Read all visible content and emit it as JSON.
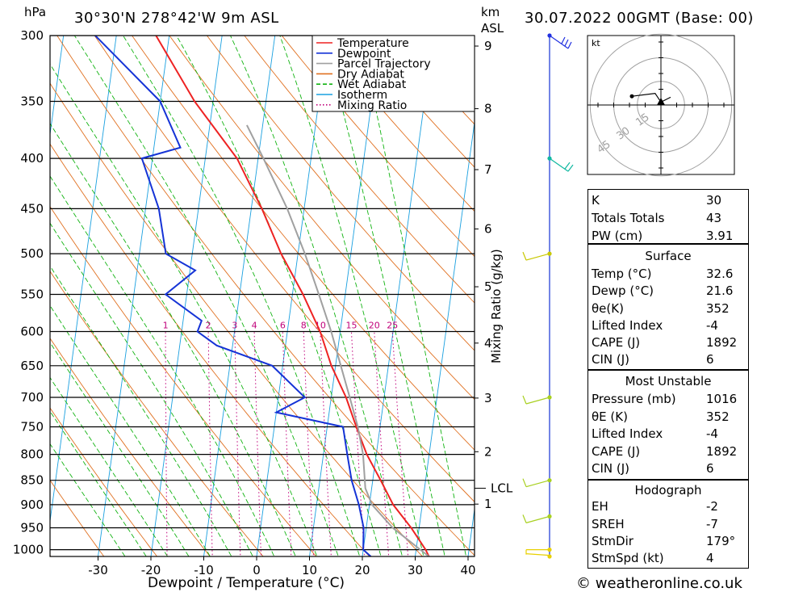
{
  "header": {
    "location": "30°30'N  278°42'W  9m  ASL",
    "datetime": "30.07.2022  00GMT  (Base: 00)",
    "hpa_label": "hPa",
    "km_label": "km",
    "asl_label": "ASL"
  },
  "footer": {
    "copyright": "© weatheronline.co.uk"
  },
  "chart_data": {
    "type": "line",
    "subtype": "skew-T log-P",
    "xlabel": "Dewpoint / Temperature (°C)",
    "ylabel": "hPa",
    "right_label": "Mixing Ratio (g/kg)",
    "pressure_levels": [
      300,
      350,
      400,
      450,
      500,
      550,
      600,
      650,
      700,
      750,
      800,
      850,
      900,
      950,
      1000
    ],
    "temp_ticks": [
      -30,
      -20,
      -10,
      0,
      10,
      20,
      30,
      40
    ],
    "km_ticks": [
      1,
      2,
      3,
      4,
      5,
      6,
      7,
      8,
      9
    ],
    "lcl_label": "LCL",
    "lcl_pressure": 866,
    "mixing_ratio_labels": [
      "1",
      "2",
      "3",
      "4",
      "6",
      "8",
      "10",
      "15",
      "20",
      "25"
    ],
    "legend": [
      "Temperature",
      "Dewpoint",
      "Parcel Trajectory",
      "Dry Adiabat",
      "Wet Adiabat",
      "Isotherm",
      "Mixing Ratio"
    ],
    "colors": {
      "temperature": "#ee2222",
      "dewpoint": "#1533d6",
      "parcel": "#a0a0a0",
      "dry_adiabat": "#e07020",
      "wet_adiabat": "#11b311",
      "isotherm": "#1aa0e0",
      "mixing_ratio": "#c0007a"
    },
    "series": [
      {
        "name": "Temperature",
        "points": [
          [
            1016,
            32.6
          ],
          [
            1000,
            31.8
          ],
          [
            950,
            28.5
          ],
          [
            900,
            24.5
          ],
          [
            850,
            21.5
          ],
          [
            800,
            18.2
          ],
          [
            750,
            15.5
          ],
          [
            700,
            12.8
          ],
          [
            650,
            9.2
          ],
          [
            600,
            6.2
          ],
          [
            550,
            2.0
          ],
          [
            500,
            -3.2
          ],
          [
            450,
            -8.0
          ],
          [
            400,
            -14.0
          ],
          [
            350,
            -23.5
          ],
          [
            300,
            -32.5
          ]
        ]
      },
      {
        "name": "Dewpoint",
        "points": [
          [
            1016,
            21.6
          ],
          [
            1000,
            20.0
          ],
          [
            950,
            19.5
          ],
          [
            900,
            18.0
          ],
          [
            850,
            16.0
          ],
          [
            800,
            14.5
          ],
          [
            750,
            13.0
          ],
          [
            725,
            0.0
          ],
          [
            700,
            5.0
          ],
          [
            650,
            -2.0
          ],
          [
            620,
            -13.0
          ],
          [
            600,
            -17.0
          ],
          [
            585,
            -16.5
          ],
          [
            550,
            -24.0
          ],
          [
            520,
            -19.0
          ],
          [
            500,
            -25.0
          ],
          [
            450,
            -27.5
          ],
          [
            400,
            -32.0
          ],
          [
            390,
            -25.0
          ],
          [
            350,
            -30.0
          ],
          [
            300,
            -44.0
          ]
        ]
      },
      {
        "name": "Parcel Trajectory",
        "points": [
          [
            1016,
            32.6
          ],
          [
            950,
            25.0
          ],
          [
            900,
            20.5
          ],
          [
            866,
            18.8
          ],
          [
            800,
            17.5
          ],
          [
            750,
            15.8
          ],
          [
            700,
            13.5
          ],
          [
            650,
            11.0
          ],
          [
            600,
            8.3
          ],
          [
            550,
            5.0
          ],
          [
            500,
            1.3
          ],
          [
            450,
            -3.2
          ],
          [
            400,
            -9.0
          ],
          [
            370,
            -13.0
          ]
        ]
      }
    ],
    "wind_barbs": [
      {
        "pressure": 300,
        "color": "#2030e0"
      },
      {
        "pressure": 400,
        "color": "#10b8a0"
      },
      {
        "pressure": 500,
        "color": "#c8c800"
      },
      {
        "pressure": 700,
        "color": "#a8d020"
      },
      {
        "pressure": 850,
        "color": "#a8d020"
      },
      {
        "pressure": 925,
        "color": "#a8d020"
      },
      {
        "pressure": 1000,
        "color": "#e8d000"
      }
    ],
    "hodograph": {
      "unit": "kt",
      "ring_labels": [
        "15",
        "30",
        "45"
      ],
      "points": [
        [
          -30,
          -9
        ],
        [
          -6,
          -12
        ],
        [
          0,
          -3
        ],
        [
          10,
          -8
        ]
      ]
    }
  },
  "stats": {
    "general": [
      {
        "key": "K",
        "value": "30"
      },
      {
        "key": "Totals Totals",
        "value": "43"
      },
      {
        "key": "PW (cm)",
        "value": "3.91"
      }
    ],
    "surface": {
      "title": "Surface",
      "rows": [
        {
          "key": "Temp (°C)",
          "value": "32.6"
        },
        {
          "key": "Dewp (°C)",
          "value": "21.6"
        },
        {
          "key": "θe(K)",
          "value": "352"
        },
        {
          "key": "Lifted Index",
          "value": "-4"
        },
        {
          "key": "CAPE (J)",
          "value": "1892"
        },
        {
          "key": "CIN (J)",
          "value": "6"
        }
      ]
    },
    "most_unstable": {
      "title": "Most Unstable",
      "rows": [
        {
          "key": "Pressure (mb)",
          "value": "1016"
        },
        {
          "key": "θE (K)",
          "value": "352"
        },
        {
          "key": "Lifted Index",
          "value": "-4"
        },
        {
          "key": "CAPE (J)",
          "value": "1892"
        },
        {
          "key": "CIN (J)",
          "value": "6"
        }
      ]
    },
    "hodograph": {
      "title": "Hodograph",
      "rows": [
        {
          "key": "EH",
          "value": "-2"
        },
        {
          "key": "SREH",
          "value": "-7"
        },
        {
          "key": "StmDir",
          "value": "179°"
        },
        {
          "key": "StmSpd (kt)",
          "value": "4"
        }
      ]
    }
  }
}
